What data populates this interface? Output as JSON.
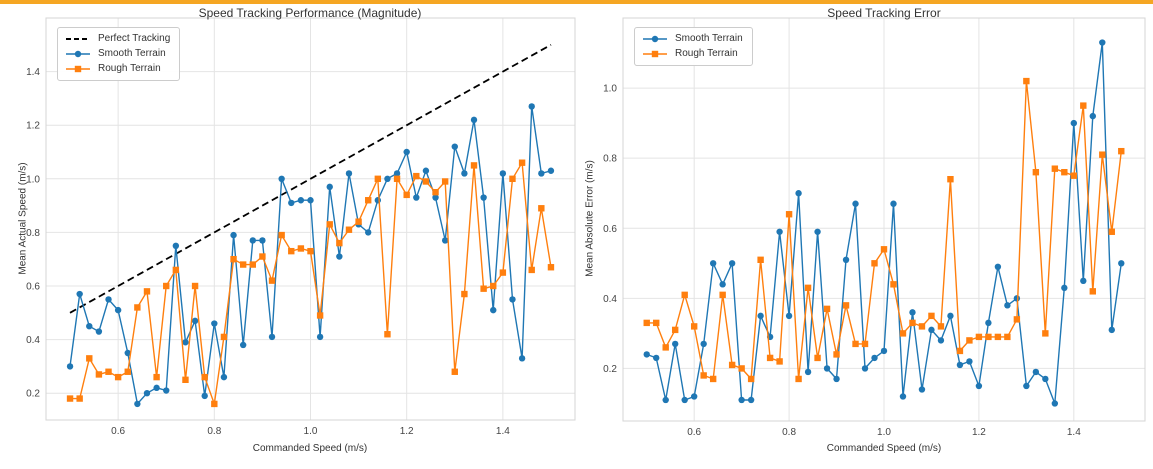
{
  "page": {
    "top_bar_color": "#f5a623",
    "background_color": "#ffffff",
    "grid_color": "#e4e4e4",
    "spine_color": "#d5d5d5",
    "tick_label_color": "#444444"
  },
  "chart_data": [
    {
      "type": "line",
      "title": "Speed Tracking Performance (Magnitude)",
      "xlabel": "Commanded Speed (m/s)",
      "ylabel": "Mean Actual Speed (m/s)",
      "xlim": [
        0.45,
        1.55
      ],
      "ylim": [
        0.1,
        1.6
      ],
      "xticks": [
        0.6,
        0.8,
        1.0,
        1.2,
        1.4
      ],
      "yticks": [
        0.2,
        0.4,
        0.6,
        0.8,
        1.0,
        1.2,
        1.4
      ],
      "grid": true,
      "legend_position": "upper-left",
      "series": [
        {
          "name": "Perfect Tracking",
          "color": "#000000",
          "dash": "7,4",
          "marker": "none",
          "linewidth": 1.8,
          "x": [
            0.5,
            1.5
          ],
          "y": [
            0.5,
            1.5
          ]
        },
        {
          "name": "Smooth Terrain",
          "color": "#1f77b4",
          "dash": null,
          "marker": "circle",
          "linewidth": 1.4,
          "x": [
            0.5,
            0.52,
            0.54,
            0.56,
            0.58,
            0.6,
            0.62,
            0.64,
            0.66,
            0.68,
            0.7,
            0.72,
            0.74,
            0.76,
            0.78,
            0.8,
            0.82,
            0.84,
            0.86,
            0.88,
            0.9,
            0.92,
            0.94,
            0.96,
            0.98,
            1.0,
            1.02,
            1.04,
            1.06,
            1.08,
            1.1,
            1.12,
            1.14,
            1.16,
            1.18,
            1.2,
            1.22,
            1.24,
            1.26,
            1.28,
            1.3,
            1.32,
            1.34,
            1.36,
            1.38,
            1.4,
            1.42,
            1.44,
            1.46,
            1.48,
            1.5
          ],
          "y": [
            0.3,
            0.57,
            0.45,
            0.43,
            0.55,
            0.51,
            0.35,
            0.16,
            0.2,
            0.22,
            0.21,
            0.75,
            0.39,
            0.47,
            0.19,
            0.46,
            0.26,
            0.79,
            0.38,
            0.77,
            0.77,
            0.41,
            1.0,
            0.91,
            0.92,
            0.92,
            0.41,
            0.97,
            0.71,
            1.02,
            0.83,
            0.8,
            0.92,
            1.0,
            1.02,
            1.1,
            0.93,
            1.03,
            0.93,
            0.77,
            1.12,
            1.02,
            1.22,
            0.93,
            0.51,
            1.02,
            0.55,
            0.33,
            1.27,
            1.02,
            1.03
          ]
        },
        {
          "name": "Rough Terrain",
          "color": "#ff7f0e",
          "dash": null,
          "marker": "square",
          "linewidth": 1.4,
          "x": [
            0.5,
            0.52,
            0.54,
            0.56,
            0.58,
            0.6,
            0.62,
            0.64,
            0.66,
            0.68,
            0.7,
            0.72,
            0.74,
            0.76,
            0.78,
            0.8,
            0.82,
            0.84,
            0.86,
            0.88,
            0.9,
            0.92,
            0.94,
            0.96,
            0.98,
            1.0,
            1.02,
            1.04,
            1.06,
            1.08,
            1.1,
            1.12,
            1.14,
            1.16,
            1.18,
            1.2,
            1.22,
            1.24,
            1.26,
            1.28,
            1.3,
            1.32,
            1.34,
            1.36,
            1.38,
            1.4,
            1.42,
            1.44,
            1.46,
            1.48,
            1.5
          ],
          "y": [
            0.18,
            0.18,
            0.33,
            0.27,
            0.28,
            0.26,
            0.28,
            0.52,
            0.58,
            0.26,
            0.6,
            0.66,
            0.25,
            0.6,
            0.26,
            0.16,
            0.41,
            0.7,
            0.68,
            0.68,
            0.71,
            0.62,
            0.79,
            0.73,
            0.74,
            0.73,
            0.49,
            0.83,
            0.76,
            0.81,
            0.84,
            0.92,
            1.0,
            0.42,
            1.0,
            0.94,
            1.01,
            0.99,
            0.95,
            0.99,
            0.28,
            0.57,
            1.05,
            0.59,
            0.6,
            0.65,
            1.0,
            1.06,
            0.66,
            0.89,
            0.67
          ]
        }
      ]
    },
    {
      "type": "line",
      "title": "Speed Tracking Error",
      "xlabel": "Commanded Speed (m/s)",
      "ylabel": "Mean Absolute Error (m/s)",
      "xlim": [
        0.45,
        1.55
      ],
      "ylim": [
        0.05,
        1.2
      ],
      "xticks": [
        0.6,
        0.8,
        1.0,
        1.2,
        1.4
      ],
      "yticks": [
        0.2,
        0.4,
        0.6,
        0.8,
        1.0
      ],
      "grid": true,
      "legend_position": "upper-left",
      "series": [
        {
          "name": "Smooth Terrain",
          "color": "#1f77b4",
          "dash": null,
          "marker": "circle",
          "linewidth": 1.4,
          "x": [
            0.5,
            0.52,
            0.54,
            0.56,
            0.58,
            0.6,
            0.62,
            0.64,
            0.66,
            0.68,
            0.7,
            0.72,
            0.74,
            0.76,
            0.78,
            0.8,
            0.82,
            0.84,
            0.86,
            0.88,
            0.9,
            0.92,
            0.94,
            0.96,
            0.98,
            1.0,
            1.02,
            1.04,
            1.06,
            1.08,
            1.1,
            1.12,
            1.14,
            1.16,
            1.18,
            1.2,
            1.22,
            1.24,
            1.26,
            1.28,
            1.3,
            1.32,
            1.34,
            1.36,
            1.38,
            1.4,
            1.42,
            1.44,
            1.46,
            1.48,
            1.5
          ],
          "y": [
            0.24,
            0.23,
            0.11,
            0.27,
            0.11,
            0.12,
            0.27,
            0.5,
            0.44,
            0.5,
            0.11,
            0.11,
            0.35,
            0.29,
            0.59,
            0.35,
            0.7,
            0.19,
            0.59,
            0.2,
            0.17,
            0.51,
            0.67,
            0.2,
            0.23,
            0.25,
            0.67,
            0.12,
            0.36,
            0.14,
            0.31,
            0.28,
            0.35,
            0.21,
            0.22,
            0.15,
            0.33,
            0.49,
            0.38,
            0.4,
            0.15,
            0.19,
            0.17,
            0.1,
            0.43,
            0.9,
            0.45,
            0.92,
            1.13,
            0.31,
            0.5
          ]
        },
        {
          "name": "Rough Terrain",
          "color": "#ff7f0e",
          "dash": null,
          "marker": "square",
          "linewidth": 1.4,
          "x": [
            0.5,
            0.52,
            0.54,
            0.56,
            0.58,
            0.6,
            0.62,
            0.64,
            0.66,
            0.68,
            0.7,
            0.72,
            0.74,
            0.76,
            0.78,
            0.8,
            0.82,
            0.84,
            0.86,
            0.88,
            0.9,
            0.92,
            0.94,
            0.96,
            0.98,
            1.0,
            1.02,
            1.04,
            1.06,
            1.08,
            1.1,
            1.12,
            1.14,
            1.16,
            1.18,
            1.2,
            1.22,
            1.24,
            1.26,
            1.28,
            1.3,
            1.32,
            1.34,
            1.36,
            1.38,
            1.4,
            1.42,
            1.44,
            1.46,
            1.48,
            1.5
          ],
          "y": [
            0.33,
            0.33,
            0.26,
            0.31,
            0.41,
            0.32,
            0.18,
            0.17,
            0.41,
            0.21,
            0.2,
            0.17,
            0.51,
            0.23,
            0.22,
            0.64,
            0.17,
            0.43,
            0.23,
            0.37,
            0.24,
            0.38,
            0.27,
            0.27,
            0.5,
            0.54,
            0.44,
            0.3,
            0.33,
            0.32,
            0.35,
            0.32,
            0.74,
            0.25,
            0.28,
            0.29,
            0.29,
            0.29,
            0.29,
            0.34,
            1.02,
            0.76,
            0.3,
            0.77,
            0.76,
            0.75,
            0.95,
            0.42,
            0.81,
            0.59,
            0.82
          ]
        }
      ]
    }
  ]
}
